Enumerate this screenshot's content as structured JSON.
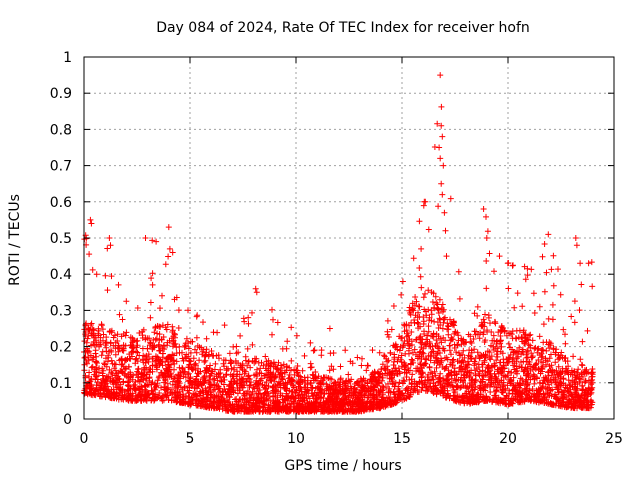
{
  "chart_data": {
    "type": "scatter",
    "title": "Day 084 of 2024, Rate Of TEC Index for receiver hofn",
    "xlabel": "GPS time / hours",
    "ylabel": "ROTI / TECUs",
    "xlim": [
      0,
      25
    ],
    "ylim": [
      0,
      1
    ],
    "xticks": [
      0,
      5,
      10,
      15,
      20,
      25
    ],
    "yticks": [
      0,
      0.1,
      0.2,
      0.3,
      0.4,
      0.5,
      0.6,
      0.7,
      0.8,
      0.9,
      1
    ],
    "xtick_labels": [
      "0",
      "5",
      "10",
      "15",
      "20",
      "25"
    ],
    "ytick_labels": [
      "0",
      "0.1",
      "0.2",
      "0.3",
      "0.4",
      "0.5",
      "0.6",
      "0.7",
      "0.8",
      "0.9",
      "1"
    ],
    "grid": true,
    "marker": "plus",
    "marker_color": "#ff0000",
    "series": [
      {
        "name": "ROTI",
        "profile": [
          {
            "t": 0.0,
            "base": 0.07,
            "spread": 0.2,
            "max": 0.55
          },
          {
            "t": 1.0,
            "base": 0.06,
            "spread": 0.2,
            "max": 0.5
          },
          {
            "t": 2.0,
            "base": 0.05,
            "spread": 0.18,
            "max": 0.35
          },
          {
            "t": 3.0,
            "base": 0.05,
            "spread": 0.2,
            "max": 0.5
          },
          {
            "t": 4.0,
            "base": 0.05,
            "spread": 0.22,
            "max": 0.53
          },
          {
            "t": 5.0,
            "base": 0.04,
            "spread": 0.18,
            "max": 0.3
          },
          {
            "t": 6.0,
            "base": 0.03,
            "spread": 0.16,
            "max": 0.28
          },
          {
            "t": 7.0,
            "base": 0.02,
            "spread": 0.14,
            "max": 0.25
          },
          {
            "t": 8.0,
            "base": 0.02,
            "spread": 0.15,
            "max": 0.36
          },
          {
            "t": 9.0,
            "base": 0.02,
            "spread": 0.14,
            "max": 0.3
          },
          {
            "t": 10.0,
            "base": 0.02,
            "spread": 0.12,
            "max": 0.25
          },
          {
            "t": 11.0,
            "base": 0.02,
            "spread": 0.1,
            "max": 0.25
          },
          {
            "t": 12.0,
            "base": 0.02,
            "spread": 0.09,
            "max": 0.2
          },
          {
            "t": 13.0,
            "base": 0.02,
            "spread": 0.09,
            "max": 0.18
          },
          {
            "t": 14.0,
            "base": 0.03,
            "spread": 0.11,
            "max": 0.2
          },
          {
            "t": 15.0,
            "base": 0.05,
            "spread": 0.22,
            "max": 0.42
          },
          {
            "t": 16.0,
            "base": 0.08,
            "spread": 0.3,
            "max": 0.6
          },
          {
            "t": 17.0,
            "base": 0.06,
            "spread": 0.26,
            "max": 0.95
          },
          {
            "t": 18.0,
            "base": 0.04,
            "spread": 0.17,
            "max": 0.3
          },
          {
            "t": 19.0,
            "base": 0.05,
            "spread": 0.25,
            "max": 0.58
          },
          {
            "t": 20.0,
            "base": 0.04,
            "spread": 0.2,
            "max": 0.45
          },
          {
            "t": 21.0,
            "base": 0.05,
            "spread": 0.2,
            "max": 0.47
          },
          {
            "t": 22.0,
            "base": 0.04,
            "spread": 0.18,
            "max": 0.51
          },
          {
            "t": 23.0,
            "base": 0.03,
            "spread": 0.12,
            "max": 0.3
          },
          {
            "t": 24.0,
            "base": 0.03,
            "spread": 0.12,
            "max": 0.5
          }
        ],
        "peaks": [
          {
            "x": 0.3,
            "y": 0.55
          },
          {
            "x": 0.35,
            "y": 0.54
          },
          {
            "x": 0.6,
            "y": 0.4
          },
          {
            "x": 1.2,
            "y": 0.5
          },
          {
            "x": 1.25,
            "y": 0.48
          },
          {
            "x": 2.9,
            "y": 0.5
          },
          {
            "x": 3.4,
            "y": 0.49
          },
          {
            "x": 4.0,
            "y": 0.53
          },
          {
            "x": 4.05,
            "y": 0.47
          },
          {
            "x": 8.1,
            "y": 0.36
          },
          {
            "x": 8.15,
            "y": 0.35
          },
          {
            "x": 11.6,
            "y": 0.25
          },
          {
            "x": 15.9,
            "y": 0.47
          },
          {
            "x": 16.05,
            "y": 0.6
          },
          {
            "x": 16.1,
            "y": 0.6
          },
          {
            "x": 16.8,
            "y": 0.95
          },
          {
            "x": 16.85,
            "y": 0.81
          },
          {
            "x": 16.9,
            "y": 0.78
          },
          {
            "x": 16.75,
            "y": 0.75
          },
          {
            "x": 16.8,
            "y": 0.72
          },
          {
            "x": 16.95,
            "y": 0.7
          },
          {
            "x": 16.85,
            "y": 0.65
          },
          {
            "x": 16.9,
            "y": 0.62
          },
          {
            "x": 17.0,
            "y": 0.57
          },
          {
            "x": 17.05,
            "y": 0.52
          },
          {
            "x": 17.1,
            "y": 0.45
          },
          {
            "x": 18.85,
            "y": 0.58
          },
          {
            "x": 19.0,
            "y": 0.5
          },
          {
            "x": 19.6,
            "y": 0.45
          },
          {
            "x": 21.9,
            "y": 0.51
          },
          {
            "x": 23.2,
            "y": 0.5
          },
          {
            "x": 23.25,
            "y": 0.48
          },
          {
            "x": 23.4,
            "y": 0.43
          },
          {
            "x": 23.8,
            "y": 0.43
          }
        ]
      }
    ]
  }
}
